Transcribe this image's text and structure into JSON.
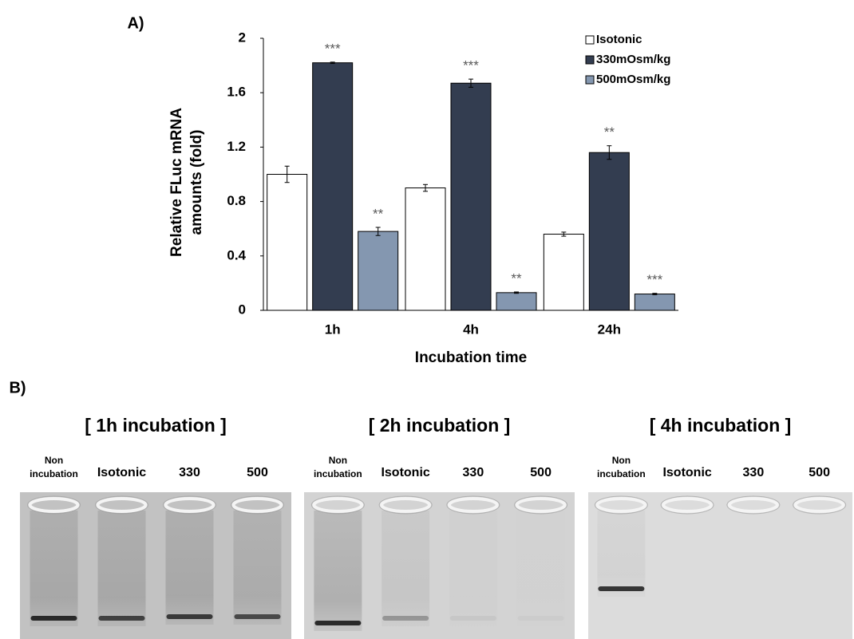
{
  "panels": {
    "a": "A)",
    "b": "B)"
  },
  "chart_data": {
    "type": "bar",
    "categories": [
      "1h",
      "4h",
      "24h"
    ],
    "x_label": "Incubation time",
    "y_label": [
      "Relative FLuc mRNA",
      "amounts (fold)"
    ],
    "ylim": [
      0,
      2
    ],
    "yticks": [
      0,
      0.4,
      0.8,
      1.2,
      1.6,
      2
    ],
    "grid": false,
    "legend": "upper right",
    "series": [
      {
        "name": "Isotonic",
        "color": "#ffffff",
        "values": [
          1.0,
          0.9,
          0.56
        ],
        "errors": [
          0.06,
          0.025,
          0.015
        ],
        "annotations": [
          null,
          null,
          null
        ]
      },
      {
        "name": "330mOsm/kg",
        "color": "#333d50",
        "values": [
          1.82,
          1.67,
          1.16
        ],
        "errors": [
          0.005,
          0.03,
          0.05
        ],
        "annotations": [
          "***",
          "***",
          "**"
        ]
      },
      {
        "name": "500mOsm/kg",
        "color": "#8497b0",
        "values": [
          0.58,
          0.13,
          0.12
        ],
        "errors": [
          0.03,
          0.005,
          0.005
        ],
        "annotations": [
          "**",
          "**",
          "***"
        ]
      }
    ]
  },
  "gels": [
    {
      "title": "[ 1h incubation ]",
      "lanes": [
        [
          "Non",
          "incubation"
        ],
        "Isotonic",
        "330",
        "500"
      ]
    },
    {
      "title": "[ 2h incubation ]",
      "lanes": [
        [
          "Non",
          "incubation"
        ],
        "Isotonic",
        "330",
        "500"
      ]
    },
    {
      "title": "[ 4h incubation ]",
      "lanes": [
        [
          "Non",
          "incubation"
        ],
        "Isotonic",
        "330",
        "500"
      ]
    }
  ]
}
